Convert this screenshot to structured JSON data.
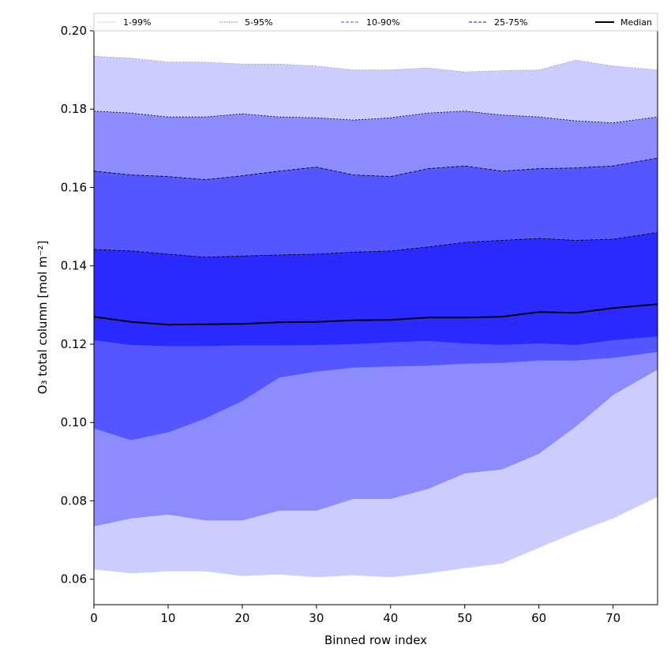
{
  "chart_data": {
    "type": "area",
    "title": "",
    "xlabel": "Binned row index",
    "ylabel": "O₃ total column [mol m⁻²]",
    "xlim": [
      0,
      76
    ],
    "ylim": [
      0.0535,
      0.2
    ],
    "grid": false,
    "legend_placement": "top",
    "x_ticks": [
      0,
      10,
      20,
      30,
      40,
      50,
      60,
      70
    ],
    "y_ticks": [
      0.06,
      0.08,
      0.1,
      0.12,
      0.14,
      0.16,
      0.18,
      0.2
    ],
    "y_tick_labels": [
      "0.06",
      "0.08",
      "0.10",
      "0.12",
      "0.14",
      "0.16",
      "0.18",
      "0.20"
    ],
    "x": [
      0,
      5,
      10,
      15,
      20,
      25,
      30,
      35,
      40,
      45,
      50,
      55,
      60,
      65,
      70,
      76
    ],
    "bands": [
      {
        "name": "1-99%",
        "fill": "#ccccff",
        "edge": "#9a9acc",
        "lower": [
          0.0625,
          0.0615,
          0.062,
          0.062,
          0.0608,
          0.0612,
          0.0605,
          0.061,
          0.0605,
          0.0615,
          0.0628,
          0.064,
          0.068,
          0.072,
          0.0755,
          0.081
        ],
        "upper": [
          0.1935,
          0.193,
          0.192,
          0.192,
          0.1915,
          0.1915,
          0.191,
          0.19,
          0.19,
          0.1905,
          0.1895,
          0.1898,
          0.19,
          0.1925,
          0.191,
          0.19
        ]
      },
      {
        "name": "5-95%",
        "fill": "#8c8cff",
        "edge": "#000000",
        "lower": [
          0.0735,
          0.0755,
          0.0765,
          0.075,
          0.075,
          0.0775,
          0.0775,
          0.0805,
          0.0805,
          0.083,
          0.087,
          0.088,
          0.092,
          0.099,
          0.107,
          0.1135
        ],
        "upper": [
          0.1795,
          0.179,
          0.178,
          0.178,
          0.1788,
          0.178,
          0.1778,
          0.1772,
          0.1778,
          0.179,
          0.1795,
          0.1785,
          0.178,
          0.177,
          0.1765,
          0.178
        ]
      },
      {
        "name": "10-90%",
        "fill": "#5656ff",
        "edge": "#000000",
        "lower": [
          0.0985,
          0.0955,
          0.0975,
          0.101,
          0.1055,
          0.1115,
          0.113,
          0.114,
          0.1143,
          0.1145,
          0.115,
          0.1152,
          0.1158,
          0.1158,
          0.1165,
          0.118
        ],
        "upper": [
          0.1642,
          0.1632,
          0.1628,
          0.162,
          0.163,
          0.1642,
          0.1652,
          0.1632,
          0.1628,
          0.1648,
          0.1655,
          0.1642,
          0.1648,
          0.165,
          0.1655,
          0.1675
        ]
      },
      {
        "name": "25-75%",
        "fill": "#2a2aff",
        "edge": "#000000",
        "lower": [
          0.121,
          0.1198,
          0.1195,
          0.1195,
          0.1197,
          0.1197,
          0.1198,
          0.12,
          0.1205,
          0.1208,
          0.1202,
          0.1198,
          0.1202,
          0.1198,
          0.121,
          0.122
        ],
        "upper": [
          0.1442,
          0.1438,
          0.143,
          0.1422,
          0.1425,
          0.1428,
          0.143,
          0.1435,
          0.1438,
          0.1448,
          0.146,
          0.1465,
          0.147,
          0.1465,
          0.1468,
          0.1485
        ]
      }
    ],
    "series": [
      {
        "name": "Median",
        "color": "#000000",
        "values": [
          0.127,
          0.1257,
          0.125,
          0.1251,
          0.1252,
          0.1256,
          0.1257,
          0.1261,
          0.1262,
          0.1268,
          0.1268,
          0.127,
          0.1282,
          0.128,
          0.1292,
          0.1302
        ]
      }
    ],
    "legend": [
      {
        "label": "1-99%",
        "style": "dotted",
        "color": "#c0c0e8"
      },
      {
        "label": "5-95%",
        "style": "dotted",
        "color": "#8a8ac8"
      },
      {
        "label": "10-90%",
        "style": "dashed",
        "color": "#7777dd"
      },
      {
        "label": "25-75%",
        "style": "dashed",
        "color": "#3a3ae0"
      },
      {
        "label": "Median",
        "style": "solid",
        "color": "#000000"
      }
    ]
  }
}
